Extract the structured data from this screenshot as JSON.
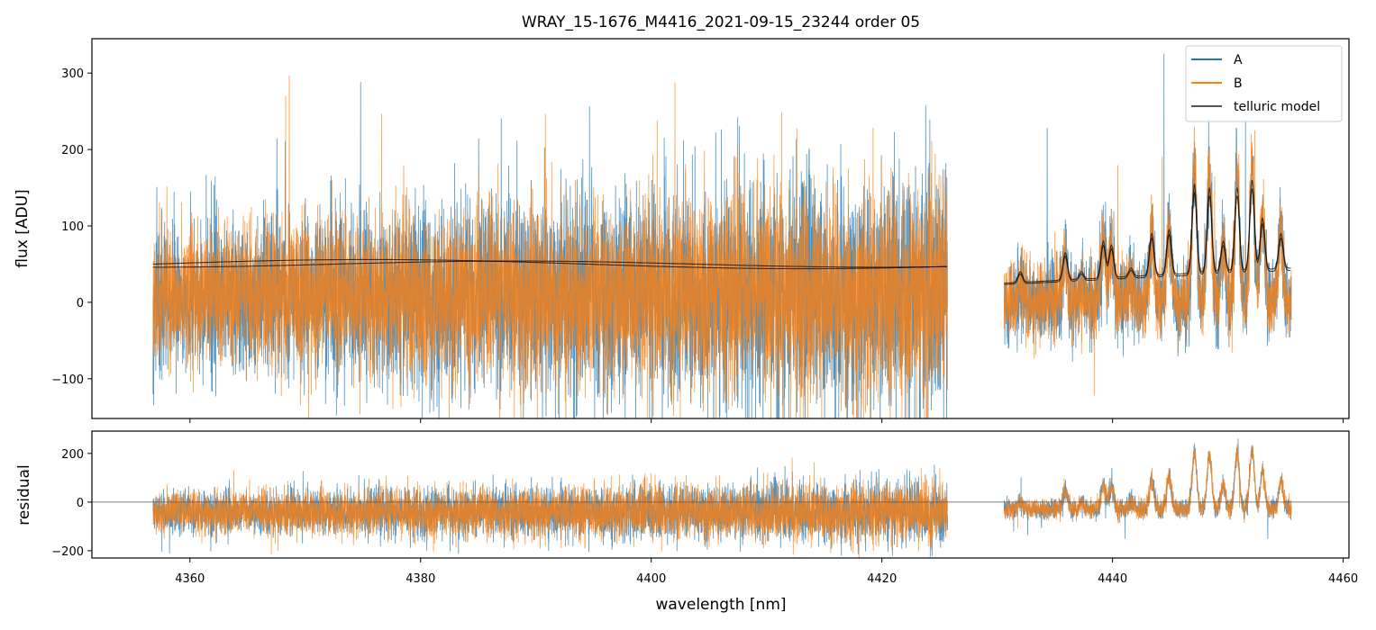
{
  "chart_data": {
    "type": "line",
    "title": "WRAY_15-1676_M4416_2021-09-15_23244  order 05",
    "xlabel": "wavelength [nm]",
    "colors": {
      "A": "#1f77b4",
      "B": "#ff7f0e",
      "telluric": "#000000",
      "zero": "#555555"
    },
    "xlim": [
      4351.5,
      4460.5
    ],
    "x_ticks": [
      4360,
      4380,
      4400,
      4420,
      4440,
      4460
    ],
    "x_tick_labels": [
      "4360",
      "4380",
      "4400",
      "4420",
      "4440",
      "4460"
    ],
    "panels": [
      {
        "name": "flux",
        "ylabel": "flux [ADU]",
        "ylim": [
          -152,
          345
        ],
        "y_ticks": [
          -100,
          0,
          100,
          200,
          300
        ],
        "y_tick_labels": [
          "−100",
          "0",
          "100",
          "200",
          "300"
        ]
      },
      {
        "name": "residual",
        "ylabel": "residual",
        "ylim": [
          -230,
          292
        ],
        "y_ticks": [
          -200,
          0,
          200
        ],
        "y_tick_labels": [
          "−200",
          "0",
          "200"
        ],
        "zero_line": true
      }
    ],
    "legend": {
      "position": "top-right",
      "entries": [
        "A",
        "B",
        "telluric model"
      ]
    },
    "segments": [
      {
        "x_range": [
          4356.8,
          4425.7
        ],
        "flux_mean": 10,
        "flux_noise": [
          45,
          75
        ],
        "residual_mean": -40,
        "residual_noise": 45,
        "telluric_baseline": 50
      },
      {
        "x_range": [
          4430.6,
          4455.5
        ],
        "flux_mean": 0,
        "flux_noise": [
          25,
          25
        ],
        "residual_mean": -30,
        "residual_noise": 20,
        "telluric_baseline": 25
      }
    ],
    "telluric_peaks": [
      {
        "x": 4432.0,
        "y": 40
      },
      {
        "x": 4435.9,
        "y": 65
      },
      {
        "x": 4437.3,
        "y": 40
      },
      {
        "x": 4439.2,
        "y": 80
      },
      {
        "x": 4439.9,
        "y": 75
      },
      {
        "x": 4441.6,
        "y": 45
      },
      {
        "x": 4443.4,
        "y": 90
      },
      {
        "x": 4444.9,
        "y": 95
      },
      {
        "x": 4447.1,
        "y": 155
      },
      {
        "x": 4448.4,
        "y": 150
      },
      {
        "x": 4449.6,
        "y": 80
      },
      {
        "x": 4450.8,
        "y": 150
      },
      {
        "x": 4452.1,
        "y": 160
      },
      {
        "x": 4453.0,
        "y": 110
      },
      {
        "x": 4454.6,
        "y": 90
      }
    ]
  }
}
